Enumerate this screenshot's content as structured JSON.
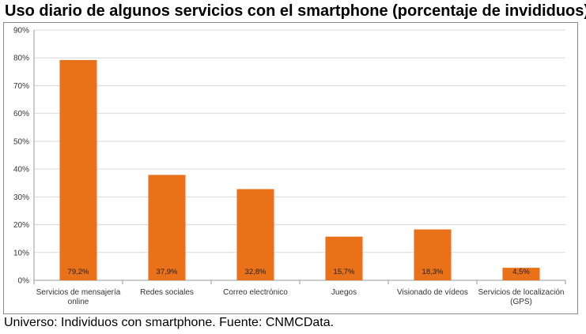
{
  "title": "Uso diario de algunos servicios con el smartphone (porcentaje de invididuos)",
  "footer": "Universo: Individuos con smartphone. Fuente: CNMCData.",
  "colors": {
    "bar": "#E8711A",
    "grid": "#d9d9d9",
    "axis": "#999999"
  },
  "chart_data": {
    "type": "bar",
    "title": "Uso diario de algunos servicios con el smartphone (porcentaje de invididuos)",
    "categories": [
      [
        "Servicios de mensajería",
        "online"
      ],
      [
        "Redes sociales"
      ],
      [
        "Correo electrónico"
      ],
      [
        "Juegos"
      ],
      [
        "Visionado de vídeos"
      ],
      [
        "Servicios de localización",
        "(GPS)"
      ]
    ],
    "values": [
      79.2,
      37.9,
      32.8,
      15.7,
      18.3,
      4.5
    ],
    "data_labels": [
      "79,2%",
      "37,9%",
      "32,8%",
      "15,7%",
      "18,3%",
      "4,5%"
    ],
    "y_ticks": [
      "0%",
      "10%",
      "20%",
      "30%",
      "40%",
      "50%",
      "60%",
      "70%",
      "80%",
      "90%"
    ],
    "ylim": [
      0,
      90
    ],
    "grid": true,
    "legend": "none"
  }
}
